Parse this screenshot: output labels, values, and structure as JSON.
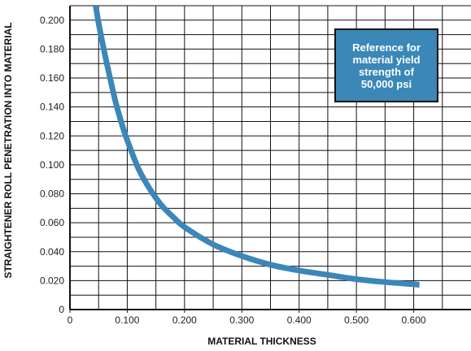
{
  "chart_data": {
    "type": "line",
    "xlabel": "MATERIAL THICKNESS",
    "ylabel": "STRAIGHTENER ROLL PENETRATION INTO MATERIAL",
    "xlim": [
      0,
      0.7
    ],
    "ylim": [
      0,
      0.21
    ],
    "x_ticks": [
      "0",
      "0.100",
      "0.200",
      "0.300",
      "0.400",
      "0.500",
      "0.600"
    ],
    "y_ticks": [
      "0",
      "0.020",
      "0.040",
      "0.060",
      "0.080",
      "0.100",
      "0.120",
      "0.140",
      "0.160",
      "0.180",
      "0.200"
    ],
    "grid": true,
    "annotation": [
      "Reference for",
      "material yield",
      "strength of",
      "50,000 psi"
    ],
    "series": [
      {
        "color": "#3a87b8",
        "x": [
          0.045,
          0.05,
          0.06,
          0.07,
          0.08,
          0.09,
          0.1,
          0.12,
          0.14,
          0.16,
          0.18,
          0.2,
          0.25,
          0.3,
          0.35,
          0.4,
          0.45,
          0.5,
          0.55,
          0.6,
          0.61
        ],
        "y": [
          0.21,
          0.198,
          0.178,
          0.16,
          0.143,
          0.129,
          0.117,
          0.097,
          0.083,
          0.072,
          0.064,
          0.057,
          0.045,
          0.037,
          0.031,
          0.027,
          0.024,
          0.021,
          0.019,
          0.0175,
          0.017
        ]
      }
    ]
  }
}
